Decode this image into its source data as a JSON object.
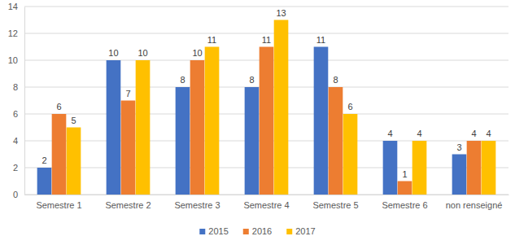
{
  "chart_data": {
    "type": "bar",
    "categories": [
      "Semestre 1",
      "Semestre 2",
      "Semestre 3",
      "Semestre 4",
      "Semestre 5",
      "Semestre 6",
      "non renseigné"
    ],
    "series": [
      {
        "name": "2015",
        "color": "#4472c4",
        "values": [
          2,
          10,
          8,
          8,
          11,
          4,
          3
        ]
      },
      {
        "name": "2016",
        "color": "#ed7d31",
        "values": [
          6,
          7,
          10,
          11,
          8,
          1,
          4
        ]
      },
      {
        "name": "2017",
        "color": "#ffc000",
        "values": [
          5,
          10,
          11,
          13,
          6,
          4,
          4
        ]
      }
    ],
    "ylim": [
      0,
      14
    ],
    "yticks": [
      0,
      2,
      4,
      6,
      8,
      10,
      12,
      14
    ],
    "grid": true,
    "data_labels": true,
    "legend": "bottom"
  }
}
